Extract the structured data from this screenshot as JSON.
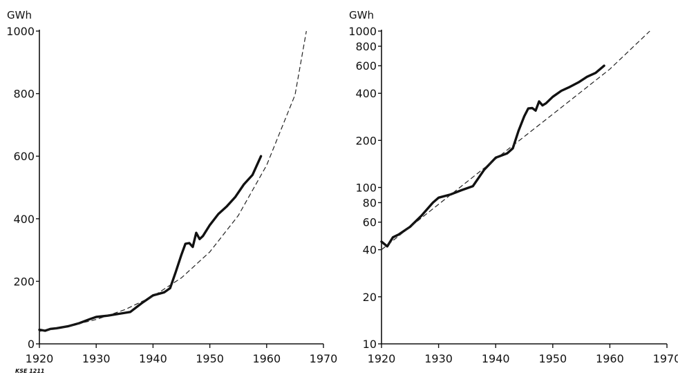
{
  "figure_code": "KSE 1211",
  "chart_data": [
    {
      "type": "line",
      "scale": "linear",
      "ylabel": "GWh",
      "xlim": [
        1920,
        1970
      ],
      "ylim": [
        0,
        1000
      ],
      "x_ticks": [
        1920,
        1930,
        1940,
        1950,
        1960,
        1970
      ],
      "y_ticks": [
        0,
        200,
        400,
        600,
        800,
        1000
      ],
      "series": [
        {
          "style": "solid",
          "x": [
            1920,
            1921,
            1922,
            1923,
            1925,
            1927,
            1929,
            1930,
            1932,
            1934,
            1936,
            1938,
            1940,
            1942,
            1943,
            1944,
            1945,
            1945.7,
            1946.4,
            1947,
            1947.6,
            1948.2,
            1948.8,
            1950,
            1951.5,
            1953,
            1954.5,
            1956,
            1957.5,
            1959
          ],
          "y": [
            45,
            42,
            48,
            50,
            56,
            66,
            80,
            86,
            90,
            96,
            102,
            130,
            155,
            165,
            178,
            230,
            285,
            320,
            322,
            310,
            355,
            335,
            345,
            380,
            415,
            440,
            470,
            510,
            540,
            600
          ]
        },
        {
          "style": "dashed",
          "x": [
            1920,
            1925,
            1930,
            1935,
            1940,
            1945,
            1950,
            1955,
            1960,
            1965,
            1967
          ],
          "y": [
            40,
            56,
            78,
            109,
            152,
            211,
            294,
            410,
            571,
            796,
            1000
          ]
        }
      ]
    },
    {
      "type": "line",
      "scale": "log",
      "ylabel": "GWh",
      "xlim": [
        1920,
        1970
      ],
      "ylim": [
        10,
        1000
      ],
      "x_ticks": [
        1920,
        1930,
        1940,
        1950,
        1960,
        1970
      ],
      "y_ticks": [
        10,
        20,
        40,
        60,
        80,
        100,
        200,
        400,
        600,
        800,
        1000
      ],
      "series": [
        {
          "style": "solid",
          "x": [
            1920,
            1921,
            1922,
            1923,
            1925,
            1927,
            1929,
            1930,
            1932,
            1934,
            1936,
            1938,
            1940,
            1942,
            1943,
            1944,
            1945,
            1945.7,
            1946.4,
            1947,
            1947.6,
            1948.2,
            1948.8,
            1950,
            1951.5,
            1953,
            1954.5,
            1956,
            1957.5,
            1959
          ],
          "y": [
            45,
            42,
            48,
            50,
            56,
            66,
            80,
            86,
            90,
            96,
            102,
            130,
            155,
            165,
            178,
            230,
            285,
            320,
            322,
            310,
            355,
            335,
            345,
            380,
            415,
            440,
            470,
            510,
            540,
            600
          ]
        },
        {
          "style": "dashed",
          "x": [
            1920,
            1930,
            1940,
            1950,
            1960,
            1967
          ],
          "y": [
            40,
            78,
            152,
            294,
            571,
            1000
          ]
        }
      ]
    }
  ]
}
